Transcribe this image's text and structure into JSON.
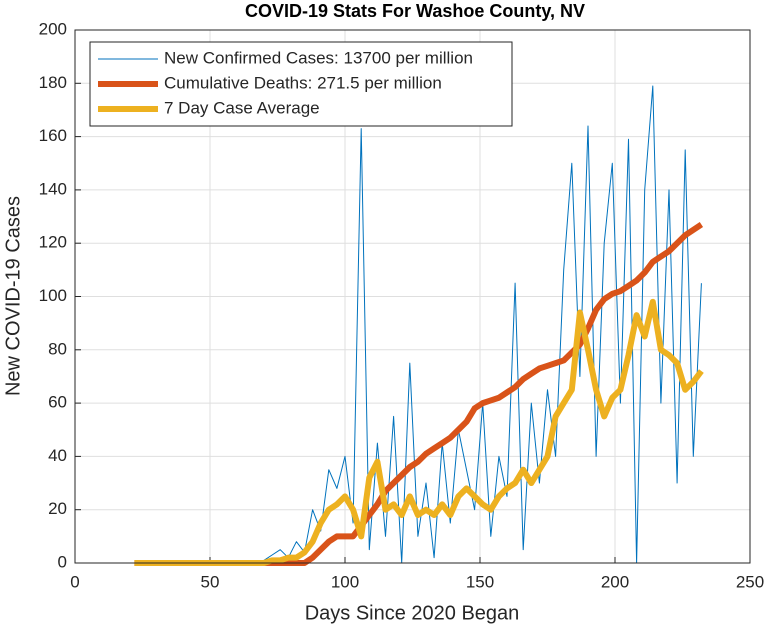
{
  "chart_data": {
    "type": "line",
    "title": "COVID-19 Stats For Washoe County, NV",
    "x_label": "Days Since 2020 Began",
    "y_label": "New COVID-19 Cases",
    "x": [
      22,
      25,
      28,
      31,
      34,
      37,
      40,
      43,
      46,
      49,
      52,
      55,
      58,
      61,
      64,
      67,
      70,
      73,
      76,
      79,
      82,
      85,
      88,
      91,
      94,
      97,
      100,
      103,
      106,
      109,
      112,
      115,
      118,
      121,
      124,
      127,
      130,
      133,
      136,
      139,
      142,
      145,
      148,
      151,
      154,
      157,
      160,
      163,
      166,
      169,
      172,
      175,
      178,
      181,
      184,
      187,
      190,
      193,
      196,
      199,
      202,
      205,
      208,
      211,
      214,
      217,
      220,
      223,
      226,
      229,
      232
    ],
    "series": [
      {
        "name": "New Confirmed Cases: 13700 per million",
        "color": "#0072bd",
        "width": 1,
        "values": [
          0,
          0,
          0,
          0,
          0,
          0,
          0,
          0,
          0,
          0,
          0,
          0,
          0,
          0,
          0,
          0,
          1,
          3,
          5,
          2,
          8,
          4,
          20,
          12,
          35,
          28,
          40,
          15,
          163,
          5,
          45,
          10,
          55,
          0,
          75,
          10,
          30,
          2,
          45,
          15,
          50,
          35,
          20,
          60,
          10,
          40,
          25,
          105,
          5,
          60,
          30,
          65,
          40,
          110,
          150,
          70,
          164,
          40,
          120,
          150,
          60,
          159,
          0,
          140,
          179,
          60,
          140,
          30,
          155,
          40,
          105
        ]
      },
      {
        "name": "Cumulative Deaths: 271.5 per million",
        "color": "#d95319",
        "width": 6,
        "values": [
          0,
          0,
          0,
          0,
          0,
          0,
          0,
          0,
          0,
          0,
          0,
          0,
          0,
          0,
          0,
          0,
          0,
          0,
          0,
          0,
          0,
          0,
          2,
          5,
          8,
          10,
          10,
          10,
          14,
          18,
          22,
          27,
          30,
          33,
          36,
          38,
          41,
          43,
          45,
          47,
          50,
          53,
          58,
          60,
          61,
          62,
          64,
          66,
          69,
          71,
          73,
          74,
          75,
          76,
          79,
          82,
          88,
          95,
          99,
          101,
          102,
          104,
          106,
          109,
          113,
          115,
          117,
          120,
          123,
          125,
          127
        ]
      },
      {
        "name": "7 Day Case Average",
        "color": "#edb120",
        "width": 6,
        "values": [
          0,
          0,
          0,
          0,
          0,
          0,
          0,
          0,
          0,
          0,
          0,
          0,
          0,
          0,
          0,
          0,
          0,
          1,
          1,
          2,
          2,
          4,
          8,
          15,
          20,
          22,
          25,
          20,
          10,
          32,
          38,
          20,
          22,
          18,
          25,
          18,
          20,
          18,
          22,
          18,
          25,
          28,
          25,
          22,
          20,
          25,
          28,
          30,
          35,
          30,
          35,
          40,
          55,
          60,
          65,
          94,
          80,
          65,
          55,
          62,
          65,
          78,
          93,
          85,
          98,
          80,
          78,
          75,
          65,
          68,
          72
        ]
      }
    ],
    "xlim": [
      0,
      250
    ],
    "xticks": [
      0,
      50,
      100,
      150,
      200,
      250
    ],
    "ylim": [
      0,
      200
    ],
    "yticks": [
      0,
      20,
      40,
      60,
      80,
      100,
      120,
      140,
      160,
      180,
      200
    ],
    "grid": true,
    "legend": "northwest"
  }
}
